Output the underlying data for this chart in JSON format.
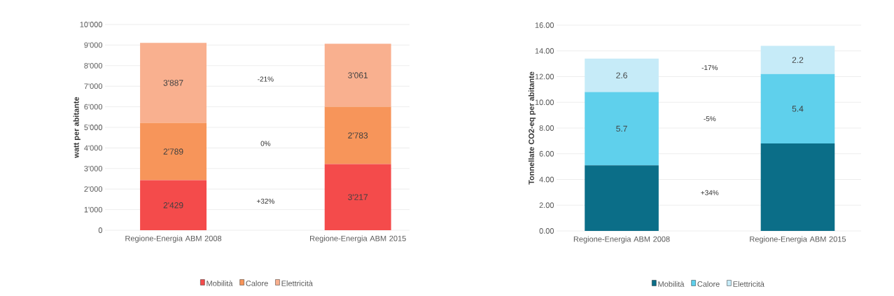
{
  "chart_data": [
    {
      "type": "bar",
      "stacked": true,
      "ylabel": "watt per abitante",
      "categories": [
        "Regione-Energia ABM 2008",
        "Regione-Energia ABM 2015"
      ],
      "series": [
        {
          "name": "Mobilità",
          "color": "#f44b4b",
          "values": [
            2429,
            3217
          ],
          "value_labels": [
            "2'429",
            "3'217"
          ]
        },
        {
          "name": "Calore",
          "color": "#f7955a",
          "values": [
            2789,
            2783
          ],
          "value_labels": [
            "2'789",
            "2'783"
          ]
        },
        {
          "name": "Elettricità",
          "color": "#f9b08f",
          "values": [
            3887,
            3061
          ],
          "value_labels": [
            "3'887",
            "3'061"
          ]
        }
      ],
      "ylim": [
        0,
        10000
      ],
      "yticks": [
        0,
        {
          "value": 1000,
          "label": "1'000"
        },
        {
          "value": 2000,
          "label": "2'000"
        },
        {
          "value": 3000,
          "label": "3'000"
        },
        {
          "value": 4000,
          "label": "4'000"
        },
        {
          "value": 5000,
          "label": "5'000"
        },
        {
          "value": 6000,
          "label": "6'000"
        },
        {
          "value": 7000,
          "label": "7'000"
        },
        {
          "value": 8000,
          "label": "8'000"
        },
        {
          "value": 9000,
          "label": "9'000"
        },
        {
          "value": 10000,
          "label": "10'000"
        }
      ],
      "grid": "y",
      "legend": "bottom",
      "annotations": [
        "+32%",
        "0%",
        "-21%"
      ]
    },
    {
      "type": "bar",
      "stacked": true,
      "ylabel": "Tonnellate CO2-eq per abitante",
      "categories": [
        "Regione-Energia ABM 2008",
        "Regione-Energia ABM 2015"
      ],
      "series": [
        {
          "name": "Mobilità",
          "color": "#0b6e88",
          "values": [
            5.1,
            6.8
          ],
          "value_labels": [
            null,
            null
          ]
        },
        {
          "name": "Calore",
          "color": "#5fd0ec",
          "values": [
            5.7,
            5.4
          ],
          "value_labels": [
            "5.7",
            "5.4"
          ]
        },
        {
          "name": "Elettricità",
          "color": "#c6ebf8",
          "values": [
            2.6,
            2.2
          ],
          "value_labels": [
            "2.6",
            "2.2"
          ]
        }
      ],
      "ylim": [
        0,
        16
      ],
      "yticks": [
        {
          "value": 0,
          "label": "0.00"
        },
        {
          "value": 2,
          "label": "2.00"
        },
        {
          "value": 4,
          "label": "4.00"
        },
        {
          "value": 6,
          "label": "6.00"
        },
        {
          "value": 8,
          "label": "8.00"
        },
        {
          "value": 10,
          "label": "10.00"
        },
        {
          "value": 12,
          "label": "12.00"
        },
        {
          "value": 14,
          "label": "14.00"
        },
        {
          "value": 16,
          "label": "16.00"
        }
      ],
      "grid": "y",
      "legend": "bottom",
      "annotations": [
        "+34%",
        "-5%",
        "-17%"
      ]
    }
  ]
}
